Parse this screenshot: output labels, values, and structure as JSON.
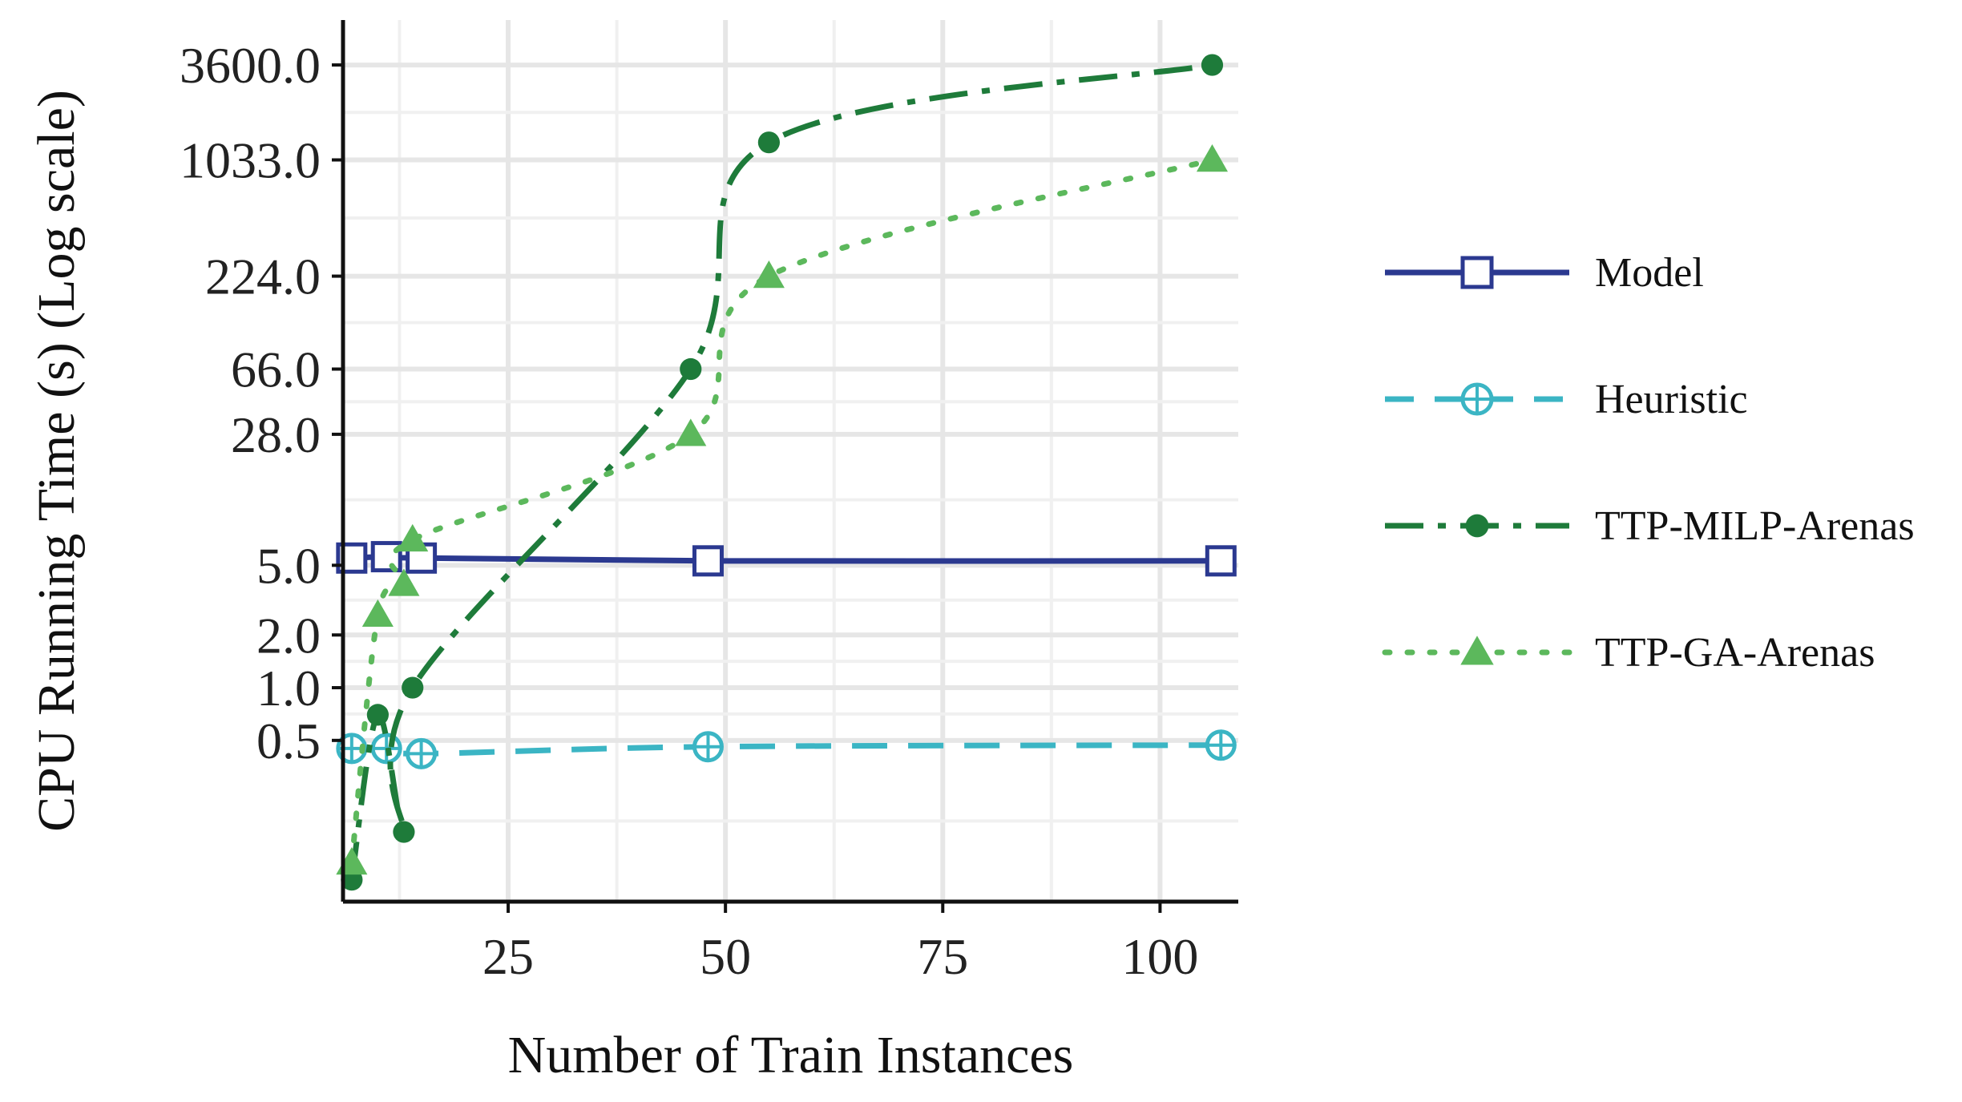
{
  "chart_data": {
    "type": "line",
    "xlabel": "Number of Train Instances",
    "ylabel": "CPU Running Time (s) (Log scale)",
    "y_scale": "log",
    "xlim": [
      6,
      109
    ],
    "ylim": [
      0.06,
      6500
    ],
    "x_ticks": [
      25,
      50,
      75,
      100
    ],
    "x_tick_labels": [
      "25",
      "50",
      "75",
      "100"
    ],
    "y_ticks": [
      0.5,
      1.0,
      2.0,
      5.0,
      28.0,
      66.0,
      224.0,
      1033.0,
      3600.0
    ],
    "y_tick_labels": [
      "0.5",
      "1.0",
      "2.0",
      "5.0",
      "28.0",
      "66.0",
      "224.0",
      "1033.0",
      "3600.0"
    ],
    "grid": true,
    "legend_position": "right",
    "series": [
      {
        "name": "Model",
        "color": "#2b3990",
        "line": "solid",
        "marker": "square-open",
        "x": [
          7,
          11,
          15,
          48,
          107
        ],
        "y": [
          5.5,
          5.6,
          5.5,
          5.3,
          5.3
        ]
      },
      {
        "name": "Heuristic",
        "color": "#3bb5c4",
        "line": "dashed",
        "marker": "circle-plus",
        "x": [
          7,
          11,
          15,
          48,
          107
        ],
        "y": [
          0.45,
          0.45,
          0.42,
          0.46,
          0.47
        ]
      },
      {
        "name": "TTP-MILP-Arenas",
        "color": "#1e7b3a",
        "line": "dashdot",
        "marker": "circle-filled",
        "x": [
          7,
          10,
          13,
          14,
          46,
          55,
          106
        ],
        "y": [
          0.08,
          0.7,
          0.15,
          1.0,
          66.0,
          1300.0,
          3600.0
        ]
      },
      {
        "name": "TTP-GA-Arenas",
        "color": "#5cb85c",
        "line": "dotted",
        "marker": "triangle-filled",
        "x": [
          7,
          10,
          13,
          14,
          46,
          55,
          106
        ],
        "y": [
          0.1,
          2.6,
          3.9,
          7.0,
          28.0,
          224.0,
          1033.0
        ]
      }
    ]
  }
}
